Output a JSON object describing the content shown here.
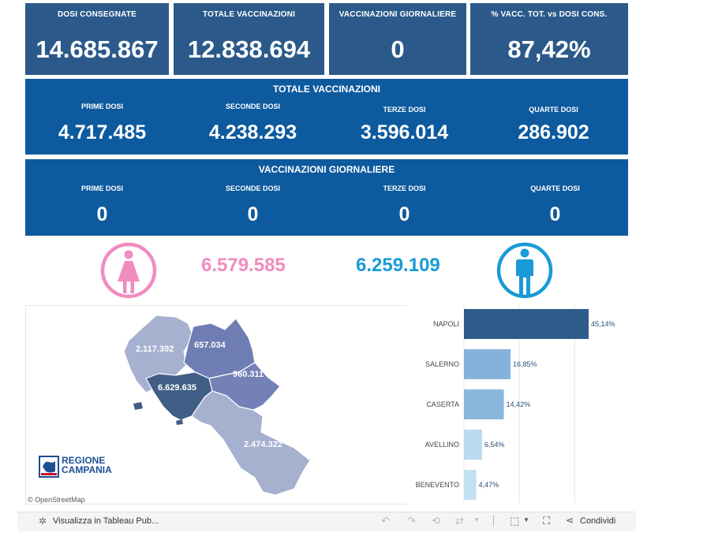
{
  "kpis": [
    {
      "label": "DOSI  CONSEGNATE",
      "value": "14.685.867"
    },
    {
      "label": "TOTALE VACCINAZIONI",
      "value": "12.838.694"
    },
    {
      "label": "VACCINAZIONI GIORNALIERE",
      "value": "0"
    },
    {
      "label": "% VACC. TOT. vs DOSI CONS.",
      "value": "87,42%"
    }
  ],
  "totale": {
    "title": "TOTALE VACCINAZIONI",
    "items": [
      {
        "label": "PRIME DOSI",
        "value": "4.717.485"
      },
      {
        "label": "SECONDE DOSI",
        "value": "4.238.293"
      },
      {
        "label": "TERZE DOSI",
        "value": "3.596.014"
      },
      {
        "label": "QUARTE DOSI",
        "value": "286.902"
      }
    ]
  },
  "giornaliere": {
    "title": "VACCINAZIONI GIORNALIERE",
    "items": [
      {
        "label": "PRIME DOSI",
        "value": "0"
      },
      {
        "label": "SECONDE DOSI",
        "value": "0"
      },
      {
        "label": "TERZE DOSI",
        "value": "0"
      },
      {
        "label": "QUARTE DOSI",
        "value": "0"
      }
    ]
  },
  "gender": {
    "female_value": "6.579.585",
    "male_value": "6.259.109",
    "female_color": "#f08cc0",
    "male_color": "#1a9ad6"
  },
  "map": {
    "provinces": [
      {
        "name": "Caserta",
        "value": "2.117.392"
      },
      {
        "name": "Benevento",
        "value": "657.034"
      },
      {
        "name": "Avellino",
        "value": "960.311"
      },
      {
        "name": "Napoli",
        "value": "6.629.635"
      },
      {
        "name": "Salerno",
        "value": "2.474.322"
      }
    ],
    "logo_line1": "REGIONE",
    "logo_line2": "CAMPANIA",
    "attribution": "© OpenStreetMap"
  },
  "chart_data": {
    "type": "bar",
    "orientation": "horizontal",
    "categories": [
      "NAPOLI",
      "SALERNO",
      "CASERTA",
      "AVELLINO",
      "BENEVENTO"
    ],
    "values": [
      45.14,
      16.85,
      14.42,
      6.54,
      4.47
    ],
    "labels": [
      "45,14%",
      "16,85%",
      "14,42%",
      "6,54%",
      "4,47%"
    ],
    "colors": [
      "#2f5b8a",
      "#85b2da",
      "#8ab7dd",
      "#b9daf1",
      "#c4e1f4"
    ],
    "xlim": [
      0,
      50
    ],
    "grid": true
  },
  "footer": {
    "view_label": "Visualizza in Tableau Pub...",
    "share_label": "Condividi"
  }
}
